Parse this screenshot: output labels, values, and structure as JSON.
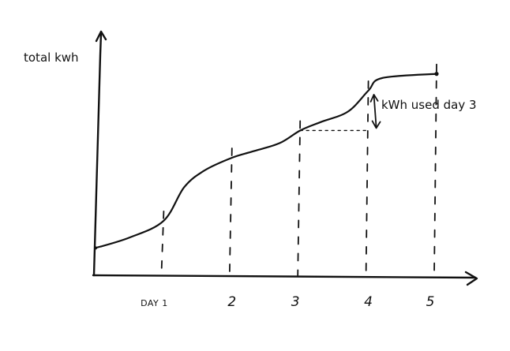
{
  "chart_data": {
    "type": "line",
    "ylabel": "total kwh",
    "x_tick_labels": [
      "DAY 1",
      "2",
      "3",
      "4",
      "5"
    ],
    "x_ticks": [
      1,
      2,
      3,
      4,
      5
    ],
    "annotation": "kWh used day 3",
    "annotation_span_day": 4,
    "xlim": [
      0,
      5
    ],
    "ylim": [
      0,
      100
    ],
    "y_axis_ticks": false,
    "grid": false,
    "series": [
      {
        "x": [
          0,
          0.5,
          1.0,
          1.3,
          1.6,
          2.0,
          2.3,
          2.7,
          3.0,
          3.3,
          3.7,
          4.0,
          4.2,
          5.0
        ],
        "y": [
          13,
          18,
          26,
          42,
          50,
          56,
          59,
          63,
          69,
          73,
          78,
          88,
          94,
          96
        ]
      }
    ],
    "colors": {
      "ink": "#111111",
      "background": "#ffffff"
    }
  }
}
